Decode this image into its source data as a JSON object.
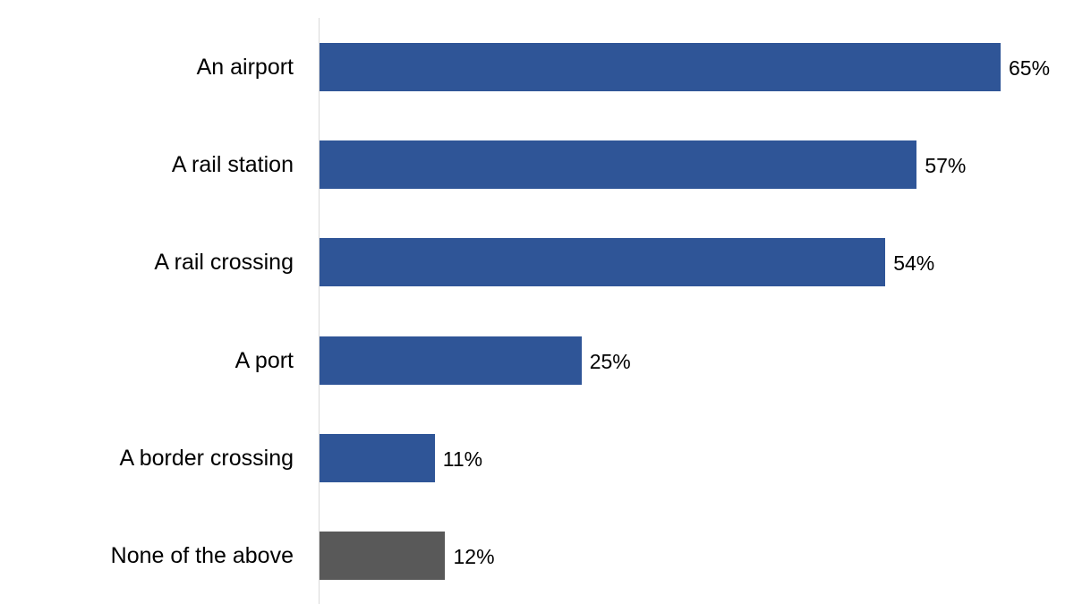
{
  "chart_data": {
    "type": "bar",
    "orientation": "horizontal",
    "title": "",
    "xlabel": "",
    "ylabel": "",
    "categories": [
      "An airport",
      "A rail station",
      "A rail crossing",
      "A port",
      "A border crossing",
      "None of the above"
    ],
    "values": [
      65,
      57,
      54,
      25,
      11,
      12
    ],
    "value_labels": [
      "65%",
      "57%",
      "54%",
      "25%",
      "11%",
      "12%"
    ],
    "colors": [
      "#2f5597",
      "#2f5597",
      "#2f5597",
      "#2f5597",
      "#2f5597",
      "#595959"
    ],
    "xlim": [
      0,
      65
    ],
    "grid": false,
    "legend": null
  }
}
